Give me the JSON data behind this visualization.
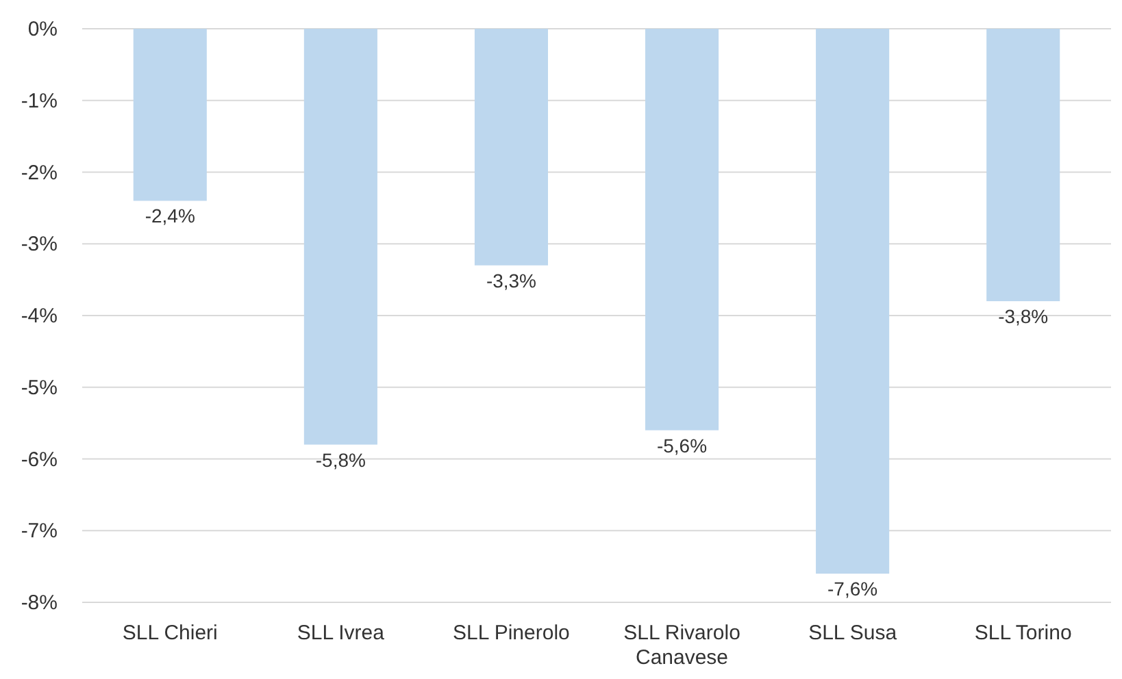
{
  "chart_data": {
    "type": "bar",
    "categories": [
      "SLL Chieri",
      "SLL Ivrea",
      "SLL Pinerolo",
      "SLL Rivarolo Canavese",
      "SLL Susa",
      "SLL Torino"
    ],
    "values": [
      -2.4,
      -5.8,
      -3.3,
      -5.6,
      -7.6,
      -3.8
    ],
    "value_labels": [
      "-2,4%",
      "-5,8%",
      "-3,3%",
      "-5,6%",
      "-7,6%",
      "-3,8%"
    ],
    "color": "#bdd7ee",
    "ylim": [
      -8,
      0
    ],
    "yticks": [
      {
        "value": 0,
        "label": "0%"
      },
      {
        "value": -1,
        "label": "-1%"
      },
      {
        "value": -2,
        "label": "-2%"
      },
      {
        "value": -3,
        "label": "-3%"
      },
      {
        "value": -4,
        "label": "-4%"
      },
      {
        "value": -5,
        "label": "-5%"
      },
      {
        "value": -6,
        "label": "-6%"
      },
      {
        "value": -7,
        "label": "-7%"
      },
      {
        "value": -8,
        "label": "-8%"
      }
    ],
    "grid": true
  }
}
